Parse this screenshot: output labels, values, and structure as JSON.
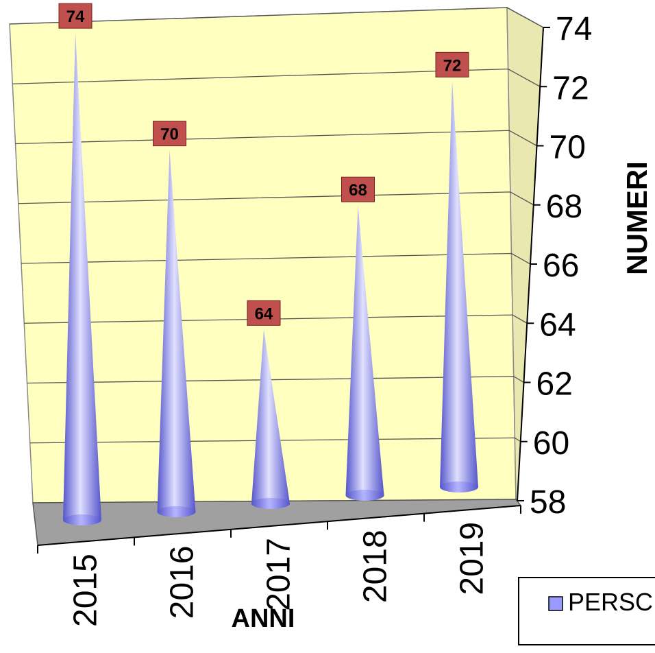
{
  "chart_data": {
    "type": "bar",
    "style": "3d-cone",
    "categories": [
      "2015",
      "2016",
      "2017",
      "2018",
      "2019"
    ],
    "series": [
      {
        "name": "PERSC",
        "values": [
          74,
          70,
          64,
          68,
          72
        ]
      }
    ],
    "data_labels": [
      "74",
      "70",
      "64",
      "68",
      "72"
    ],
    "xlabel": "ANNI",
    "ylabel": "NUMERI",
    "ylim": [
      58,
      74
    ],
    "yticks": [
      58,
      60,
      62,
      64,
      66,
      68,
      70,
      72,
      74
    ],
    "y_axis_side": "right",
    "grid": true,
    "legend": {
      "position": "bottom-right",
      "label": "PERSC"
    },
    "colors": {
      "cone": "#9999ff",
      "cone_dark": "#5555cc",
      "cone_light": "#e0e0ff",
      "back_wall": "#ffffc0",
      "side_wall": "#e8e8b0",
      "floor": "#a0a0a0",
      "label_bg": "#c0504d",
      "gridline": "#555555"
    }
  }
}
